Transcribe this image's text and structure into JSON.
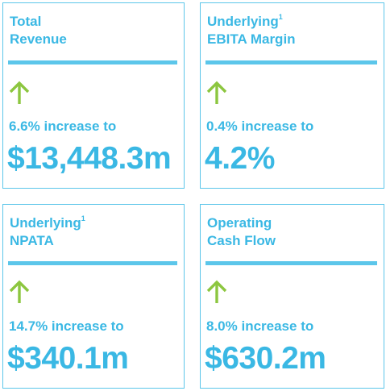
{
  "cards": [
    {
      "title_line1": "Total",
      "title_sup": "",
      "title_line2": "Revenue",
      "change": "6.6% increase to",
      "value": "$13,448.3m",
      "direction": "up-arrow-icon"
    },
    {
      "title_line1": "Underlying",
      "title_sup": "1",
      "title_line2": "EBITA Margin",
      "change": "0.4% increase to",
      "value": "4.2%",
      "direction": "up-arrow-icon"
    },
    {
      "title_line1": "Underlying",
      "title_sup": "1",
      "title_line2": "NPATA",
      "change": "14.7% increase to",
      "value": "$340.1m",
      "direction": "up-arrow-icon"
    },
    {
      "title_line1": "Operating",
      "title_sup": "",
      "title_line2": "Cash Flow",
      "change": "8.0% increase to",
      "value": "$630.2m",
      "direction": "up-arrow-icon"
    }
  ],
  "colors": {
    "accent": "#3ab8e4",
    "border": "#5cc6ea",
    "arrow": "#8cc63f"
  }
}
